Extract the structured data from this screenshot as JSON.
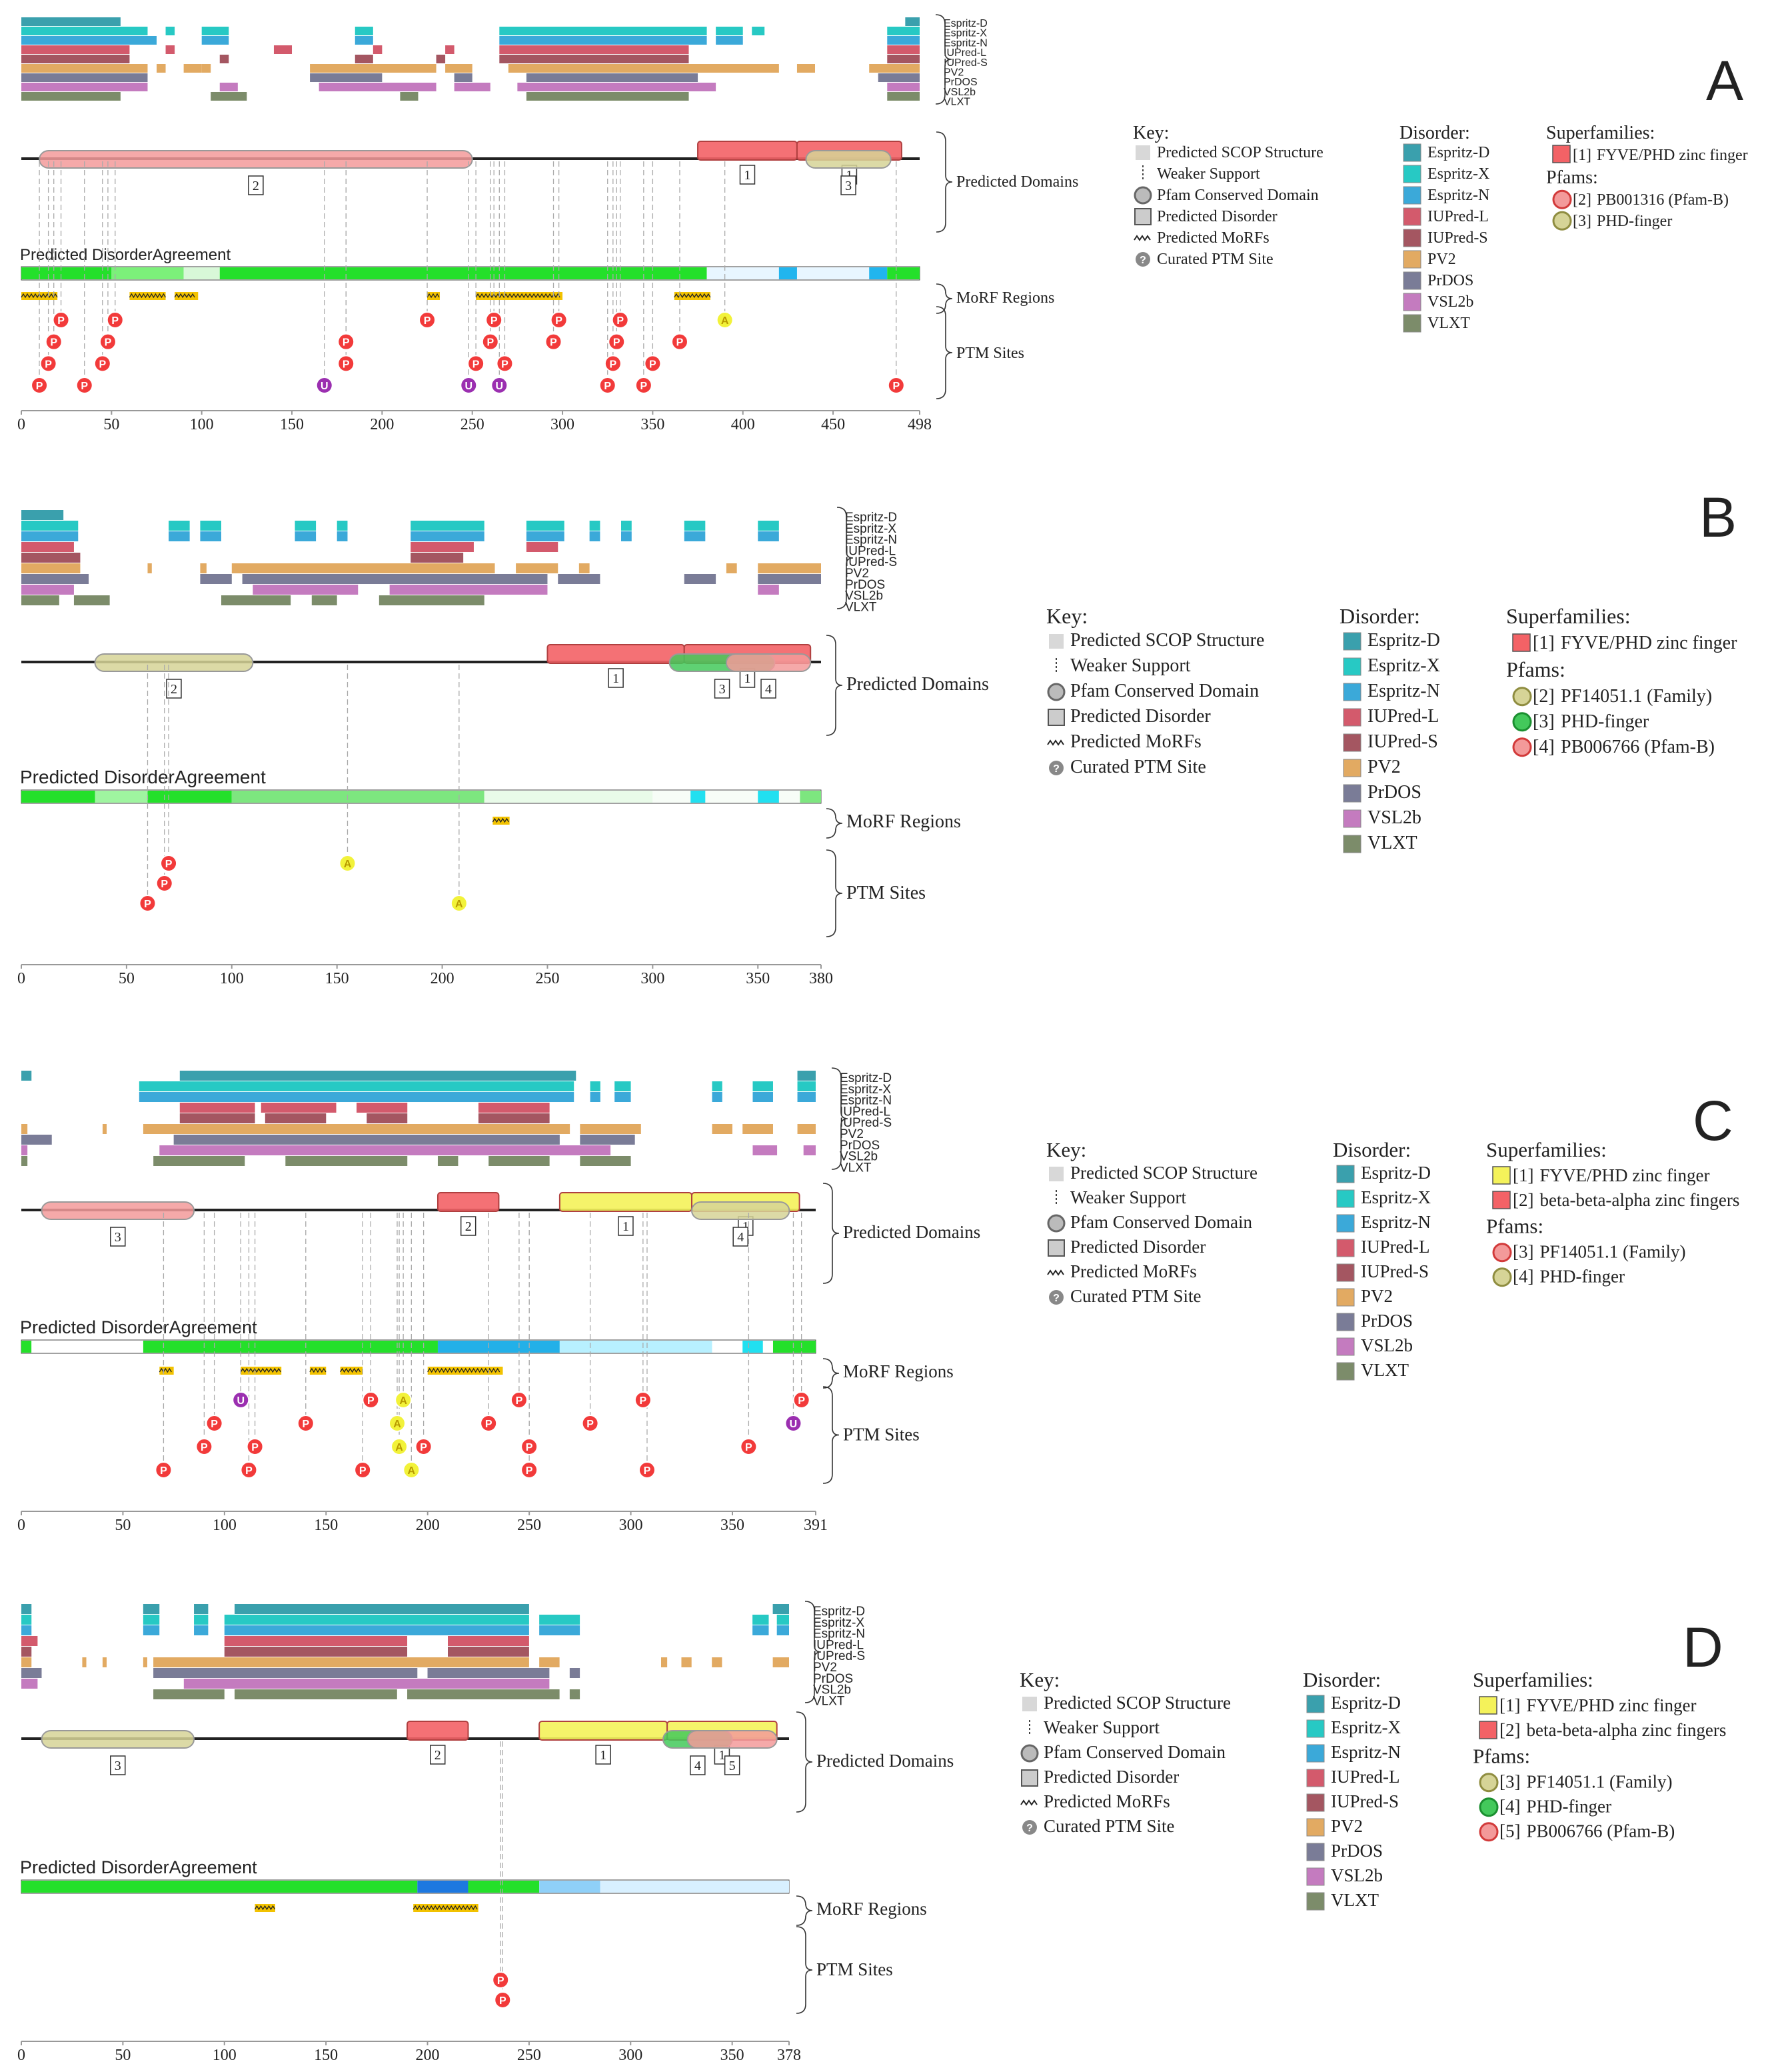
{
  "colors": {
    "Espritz-D": "#3aa0ad",
    "Espritz-X": "#27c9c4",
    "Espritz-N": "#3ba9d9",
    "IUPred-L": "#d35a6c",
    "IUPred-S": "#a45661",
    "PV2": "#e2aa62",
    "PrDOS": "#7a7c97",
    "VSL2b": "#c47bbf",
    "VLXT": "#7c8c6a",
    "superfamily_red": "#f36266",
    "superfamily_yellow": "#f4f25a",
    "pfam_olive": "#d6d497",
    "pfam_green": "#43c95b",
    "pfam_pink": "#f39a9a",
    "ptm_phospho": "#f23a3a",
    "ptm_ubiq": "#9b2fb0",
    "ptm_acetyl": "#f2f23a",
    "agreement_green": "#24e02a",
    "agreement_blue": "#21b5ee"
  },
  "common": {
    "predictor_names": [
      "Espritz-D",
      "Espritz-X",
      "Espritz-N",
      "IUPred-L",
      "IUPred-S",
      "PV2",
      "PrDOS",
      "VSL2b",
      "VLXT"
    ],
    "bracket_labels": {
      "domains": "Predicted Domains",
      "morf": "MoRF Regions",
      "ptm": "PTM Sites"
    },
    "agreement_title": "Predicted DisorderAgreement",
    "key_title": "Key:",
    "key_items": [
      {
        "icon": "scop",
        "label": "Predicted SCOP Structure"
      },
      {
        "icon": "weak",
        "label": "Weaker Support"
      },
      {
        "icon": "pfam",
        "label": "Pfam Conserved Domain"
      },
      {
        "icon": "disorder",
        "label": "Predicted Disorder"
      },
      {
        "icon": "morf",
        "label": "Predicted MoRFs"
      },
      {
        "icon": "ptm",
        "label": "Curated PTM Site"
      }
    ],
    "ptm_icon_glyph": "?",
    "disorder_title": "Disorder:",
    "superfamilies_title": "Superfamilies:",
    "pfams_title": "Pfams:"
  },
  "panels": [
    {
      "letter": "A",
      "length": 498,
      "ticks": [
        "0",
        "50",
        "100",
        "150",
        "200",
        "250",
        "300",
        "350",
        "400",
        "450",
        "498"
      ],
      "superfamilies": [
        {
          "num": "[1]",
          "name": "FYVE/PHD zinc finger",
          "color": "superfamily_red"
        }
      ],
      "pfams": [
        {
          "num": "[2]",
          "name": "PB001316 (Pfam-B)",
          "color": "pfam_pink"
        },
        {
          "num": "[3]",
          "name": "PHD-finger",
          "color": "pfam_olive"
        }
      ],
      "domain_labels": [
        "1",
        "1",
        "2",
        "3"
      ],
      "ptm_labels": [
        "P",
        "U",
        "A"
      ]
    },
    {
      "letter": "B",
      "length": 380,
      "ticks": [
        "0",
        "50",
        "100",
        "150",
        "200",
        "250",
        "300",
        "350",
        "380"
      ],
      "superfamilies": [
        {
          "num": "[1]",
          "name": "FYVE/PHD zinc finger",
          "color": "superfamily_red"
        }
      ],
      "pfams": [
        {
          "num": "[2]",
          "name": "PF14051.1 (Family)",
          "color": "pfam_olive"
        },
        {
          "num": "[3]",
          "name": "PHD-finger",
          "color": "pfam_green"
        },
        {
          "num": "[4]",
          "name": "PB006766 (Pfam-B)",
          "color": "pfam_pink"
        }
      ],
      "domain_labels": [
        "1",
        "1",
        "2",
        "3",
        "4"
      ],
      "ptm_labels": [
        "P",
        "A"
      ]
    },
    {
      "letter": "C",
      "length": 391,
      "ticks": [
        "0",
        "50",
        "100",
        "150",
        "200",
        "250",
        "300",
        "350",
        "391"
      ],
      "superfamilies": [
        {
          "num": "[1]",
          "name": "FYVE/PHD zinc finger",
          "color": "superfamily_yellow"
        },
        {
          "num": "[2]",
          "name": "beta-beta-alpha zinc fingers",
          "color": "superfamily_red"
        }
      ],
      "pfams": [
        {
          "num": "[3]",
          "name": "PF14051.1 (Family)",
          "color": "pfam_pink"
        },
        {
          "num": "[4]",
          "name": "PHD-finger",
          "color": "pfam_olive"
        }
      ],
      "domain_labels": [
        "1",
        "1",
        "2",
        "3",
        "4"
      ],
      "ptm_labels": [
        "P",
        "U",
        "A"
      ]
    },
    {
      "letter": "D",
      "length": 378,
      "ticks": [
        "0",
        "50",
        "100",
        "150",
        "200",
        "250",
        "300",
        "350",
        "378"
      ],
      "superfamilies": [
        {
          "num": "[1]",
          "name": "FYVE/PHD zinc finger",
          "color": "superfamily_yellow"
        },
        {
          "num": "[2]",
          "name": "beta-beta-alpha zinc fingers",
          "color": "superfamily_red"
        }
      ],
      "pfams": [
        {
          "num": "[3]",
          "name": "PF14051.1 (Family)",
          "color": "pfam_olive"
        },
        {
          "num": "[4]",
          "name": "PHD-finger",
          "color": "pfam_green"
        },
        {
          "num": "[5]",
          "name": "PB006766 (Pfam-B)",
          "color": "pfam_pink"
        }
      ],
      "domain_labels": [
        "1",
        "1",
        "2",
        "3",
        "4",
        "5"
      ],
      "ptm_labels": [
        "P"
      ]
    }
  ]
}
